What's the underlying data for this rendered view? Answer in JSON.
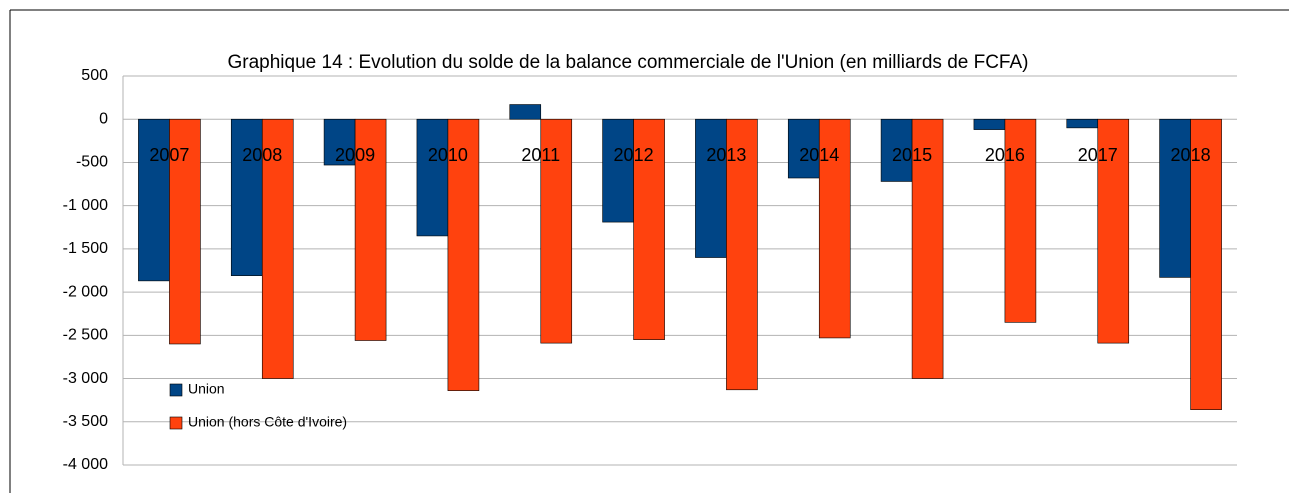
{
  "chart_data": {
    "type": "bar",
    "title": "Graphique 14  : Evolution du solde de la balance commerciale de l'Union (en milliards de FCFA)",
    "categories": [
      "2007",
      "2008",
      "2009",
      "2010",
      "2011",
      "2012",
      "2013",
      "2014",
      "2015",
      "2016",
      "2017",
      "2018"
    ],
    "series": [
      {
        "name": "Union",
        "color": "#004586",
        "values": [
          -1870,
          -1810,
          -530,
          -1350,
          170,
          -1190,
          -1600,
          -680,
          -720,
          -120,
          -100,
          -1830
        ]
      },
      {
        "name": "Union (hors Côte d'Ivoire)",
        "color": "#ff420e",
        "values": [
          -2600,
          -3000,
          -2560,
          -3140,
          -2590,
          -2550,
          -3130,
          -2530,
          -3000,
          -2350,
          -2590,
          -3360
        ]
      }
    ],
    "ylim": [
      -4000,
      500
    ],
    "yticks": [
      {
        "value": -4000,
        "label": "-4 000"
      },
      {
        "value": -3500,
        "label": "-3 500"
      },
      {
        "value": -3000,
        "label": "-3 000"
      },
      {
        "value": -2500,
        "label": "-2 500"
      },
      {
        "value": -2000,
        "label": "-2 000"
      },
      {
        "value": -1500,
        "label": "-1 500"
      },
      {
        "value": -1000,
        "label": "-1 000"
      },
      -500,
      0,
      500
    ],
    "grid": true,
    "legend": "lower left"
  }
}
